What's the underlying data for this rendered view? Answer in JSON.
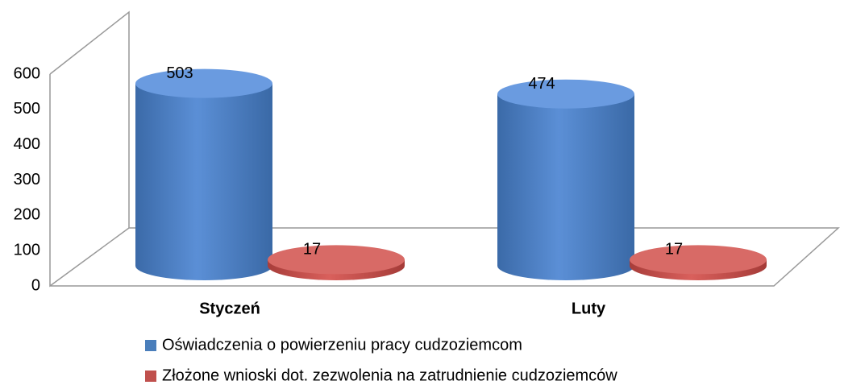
{
  "chart_data": {
    "type": "bar",
    "categories": [
      "Styczeń",
      "Luty"
    ],
    "series": [
      {
        "name": "Oświadczenia o powierzeniu pracy cudzoziemcom",
        "color": "#4a7ebb",
        "values": [
          503,
          474
        ]
      },
      {
        "name": "Złożone wnioski dot. zezwolenia na zatrudnienie cudzoziemców",
        "color": "#c0504d",
        "values": [
          17,
          17
        ]
      }
    ],
    "ylim": [
      0,
      600
    ],
    "yticks": [
      0,
      100,
      200,
      300,
      400,
      500,
      600
    ],
    "grid": false
  }
}
